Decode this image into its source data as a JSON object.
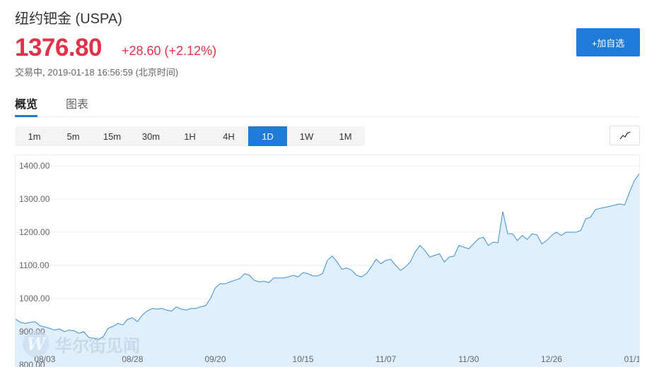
{
  "header": {
    "title": "纽约钯金 (USPA)",
    "price": "1376.80",
    "change": "+28.60 (+2.12%)",
    "status_label": "交易中",
    "status_time": "2019-01-18 16:56:59 (北京时间)",
    "add_button": "+加自选"
  },
  "tabs": [
    {
      "label": "概览",
      "active": true
    },
    {
      "label": "图表",
      "active": false
    }
  ],
  "periods": [
    {
      "label": "1m",
      "active": false
    },
    {
      "label": "5m",
      "active": false
    },
    {
      "label": "15m",
      "active": false
    },
    {
      "label": "30m",
      "active": false
    },
    {
      "label": "1H",
      "active": false
    },
    {
      "label": "4H",
      "active": false
    },
    {
      "label": "1D",
      "active": true
    },
    {
      "label": "1W",
      "active": false
    },
    {
      "label": "1M",
      "active": false
    }
  ],
  "chart_type_icon": "line-chart-icon",
  "watermark": {
    "text": "华尔街见闻",
    "logo": "W"
  },
  "colors": {
    "accent": "#1f7ad8",
    "up": "#e0334a",
    "line": "#3a8fd8",
    "fill": "#e1effd"
  },
  "chart_data": {
    "type": "area",
    "ylim": [
      800,
      1420
    ],
    "y_ticks": [
      "1400.00",
      "1300.00",
      "1200.00",
      "1100.00",
      "1000.00",
      "900.00",
      "800.00"
    ],
    "y_tick_values": [
      1400,
      1300,
      1200,
      1100,
      1000,
      900,
      800
    ],
    "x_ticks": [
      {
        "label": "08/03",
        "index": 6
      },
      {
        "label": "08/28",
        "index": 24
      },
      {
        "label": "09/20",
        "index": 41
      },
      {
        "label": "10/15",
        "index": 59
      },
      {
        "label": "11/07",
        "index": 76
      },
      {
        "label": "11/30",
        "index": 93
      },
      {
        "label": "12/26",
        "index": 110
      },
      {
        "label": "01/1",
        "index": 127
      }
    ],
    "values": [
      938,
      928,
      925,
      928,
      930,
      918,
      914,
      910,
      905,
      908,
      900,
      905,
      903,
      895,
      900,
      883,
      880,
      877,
      885,
      910,
      916,
      925,
      920,
      937,
      942,
      930,
      950,
      962,
      970,
      968,
      970,
      965,
      962,
      975,
      968,
      965,
      970,
      970,
      975,
      978,
      1000,
      1032,
      1045,
      1044,
      1050,
      1055,
      1060,
      1075,
      1070,
      1055,
      1050,
      1052,
      1048,
      1062,
      1062,
      1062,
      1065,
      1070,
      1065,
      1078,
      1075,
      1068,
      1068,
      1075,
      1115,
      1128,
      1110,
      1088,
      1092,
      1085,
      1070,
      1065,
      1075,
      1095,
      1118,
      1105,
      1115,
      1118,
      1100,
      1085,
      1095,
      1110,
      1140,
      1160,
      1145,
      1125,
      1130,
      1135,
      1110,
      1125,
      1128,
      1160,
      1155,
      1150,
      1165,
      1180,
      1185,
      1160,
      1170,
      1168,
      1262,
      1195,
      1195,
      1175,
      1190,
      1178,
      1195,
      1192,
      1165,
      1175,
      1190,
      1200,
      1190,
      1200,
      1200,
      1200,
      1205,
      1240,
      1245,
      1268,
      1272,
      1275,
      1278,
      1282,
      1285,
      1282,
      1320,
      1355,
      1376
    ]
  }
}
